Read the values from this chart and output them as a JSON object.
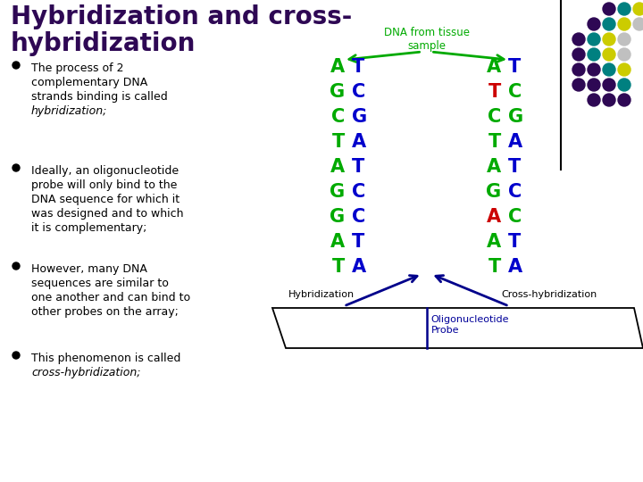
{
  "title_line1": "Hybridization and cross-",
  "title_line2": "hybridization",
  "title_color": "#2E0854",
  "bg_color": "#FFFFFF",
  "dna_label": "DNA from tissue\nsample",
  "dna_label_color": "#00AA00",
  "left_seq": [
    {
      "left": "A",
      "right": "T"
    },
    {
      "left": "G",
      "right": "C"
    },
    {
      "left": "C",
      "right": "G"
    },
    {
      "left": "T",
      "right": "A"
    },
    {
      "left": "A",
      "right": "T"
    },
    {
      "left": "G",
      "right": "C"
    },
    {
      "left": "G",
      "right": "C"
    },
    {
      "left": "A",
      "right": "T"
    },
    {
      "left": "T",
      "right": "A"
    }
  ],
  "right_seq": [
    {
      "left": "A",
      "right": "T",
      "left_color": "#00AA00",
      "right_color": "#0000CC"
    },
    {
      "left": "T",
      "right": "C",
      "left_color": "#CC0000",
      "right_color": "#00AA00"
    },
    {
      "left": "C",
      "right": "G",
      "left_color": "#00AA00",
      "right_color": "#00AA00"
    },
    {
      "left": "T",
      "right": "A",
      "left_color": "#00AA00",
      "right_color": "#0000CC"
    },
    {
      "left": "A",
      "right": "T",
      "left_color": "#00AA00",
      "right_color": "#0000CC"
    },
    {
      "left": "G",
      "right": "C",
      "left_color": "#00AA00",
      "right_color": "#0000CC"
    },
    {
      "left": "A",
      "right": "C",
      "left_color": "#CC0000",
      "right_color": "#00AA00"
    },
    {
      "left": "A",
      "right": "T",
      "left_color": "#00AA00",
      "right_color": "#0000CC"
    },
    {
      "left": "T",
      "right": "A",
      "left_color": "#00AA00",
      "right_color": "#0000CC"
    }
  ],
  "left_default_left_color": "#00AA00",
  "left_default_right_color": "#0000CC",
  "bullet_points": [
    [
      "The process of 2",
      "complementary DNA",
      "strands binding is called",
      "hybridization;"
    ],
    [
      "Ideally, an oligonucleotide",
      "probe will only bind to the",
      "DNA sequence for which it",
      "was designed and to which",
      "it is complementary;"
    ],
    [
      "However, many DNA",
      "sequences are similar to",
      "one another and can bind to",
      "other probes on the array;"
    ],
    [
      "This phenomenon is called",
      "cross-hybridization;"
    ]
  ],
  "italic_lines": [
    "hybridization;",
    "cross-hybridization;"
  ],
  "hybridization_label": "Hybridization",
  "cross_label": "Cross-hybridization",
  "probe_label": "Oligonucleotide\nProbe",
  "dot_pattern": [
    [
      null,
      null,
      "#2E0854",
      "#008080",
      "#CCCC00"
    ],
    [
      null,
      "#2E0854",
      "#008080",
      "#CCCC00",
      "#C0C0C0"
    ],
    [
      "#2E0854",
      "#008080",
      "#CCCC00",
      "#C0C0C0",
      null
    ],
    [
      "#2E0854",
      "#008080",
      "#CCCC00",
      "#C0C0C0",
      null
    ],
    [
      "#2E0854",
      "#2E0854",
      "#008080",
      "#CCCC00",
      null
    ],
    [
      "#2E0854",
      "#2E0854",
      "#2E0854",
      "#008080",
      null
    ],
    [
      null,
      "#2E0854",
      "#2E0854",
      "#2E0854",
      null
    ]
  ]
}
